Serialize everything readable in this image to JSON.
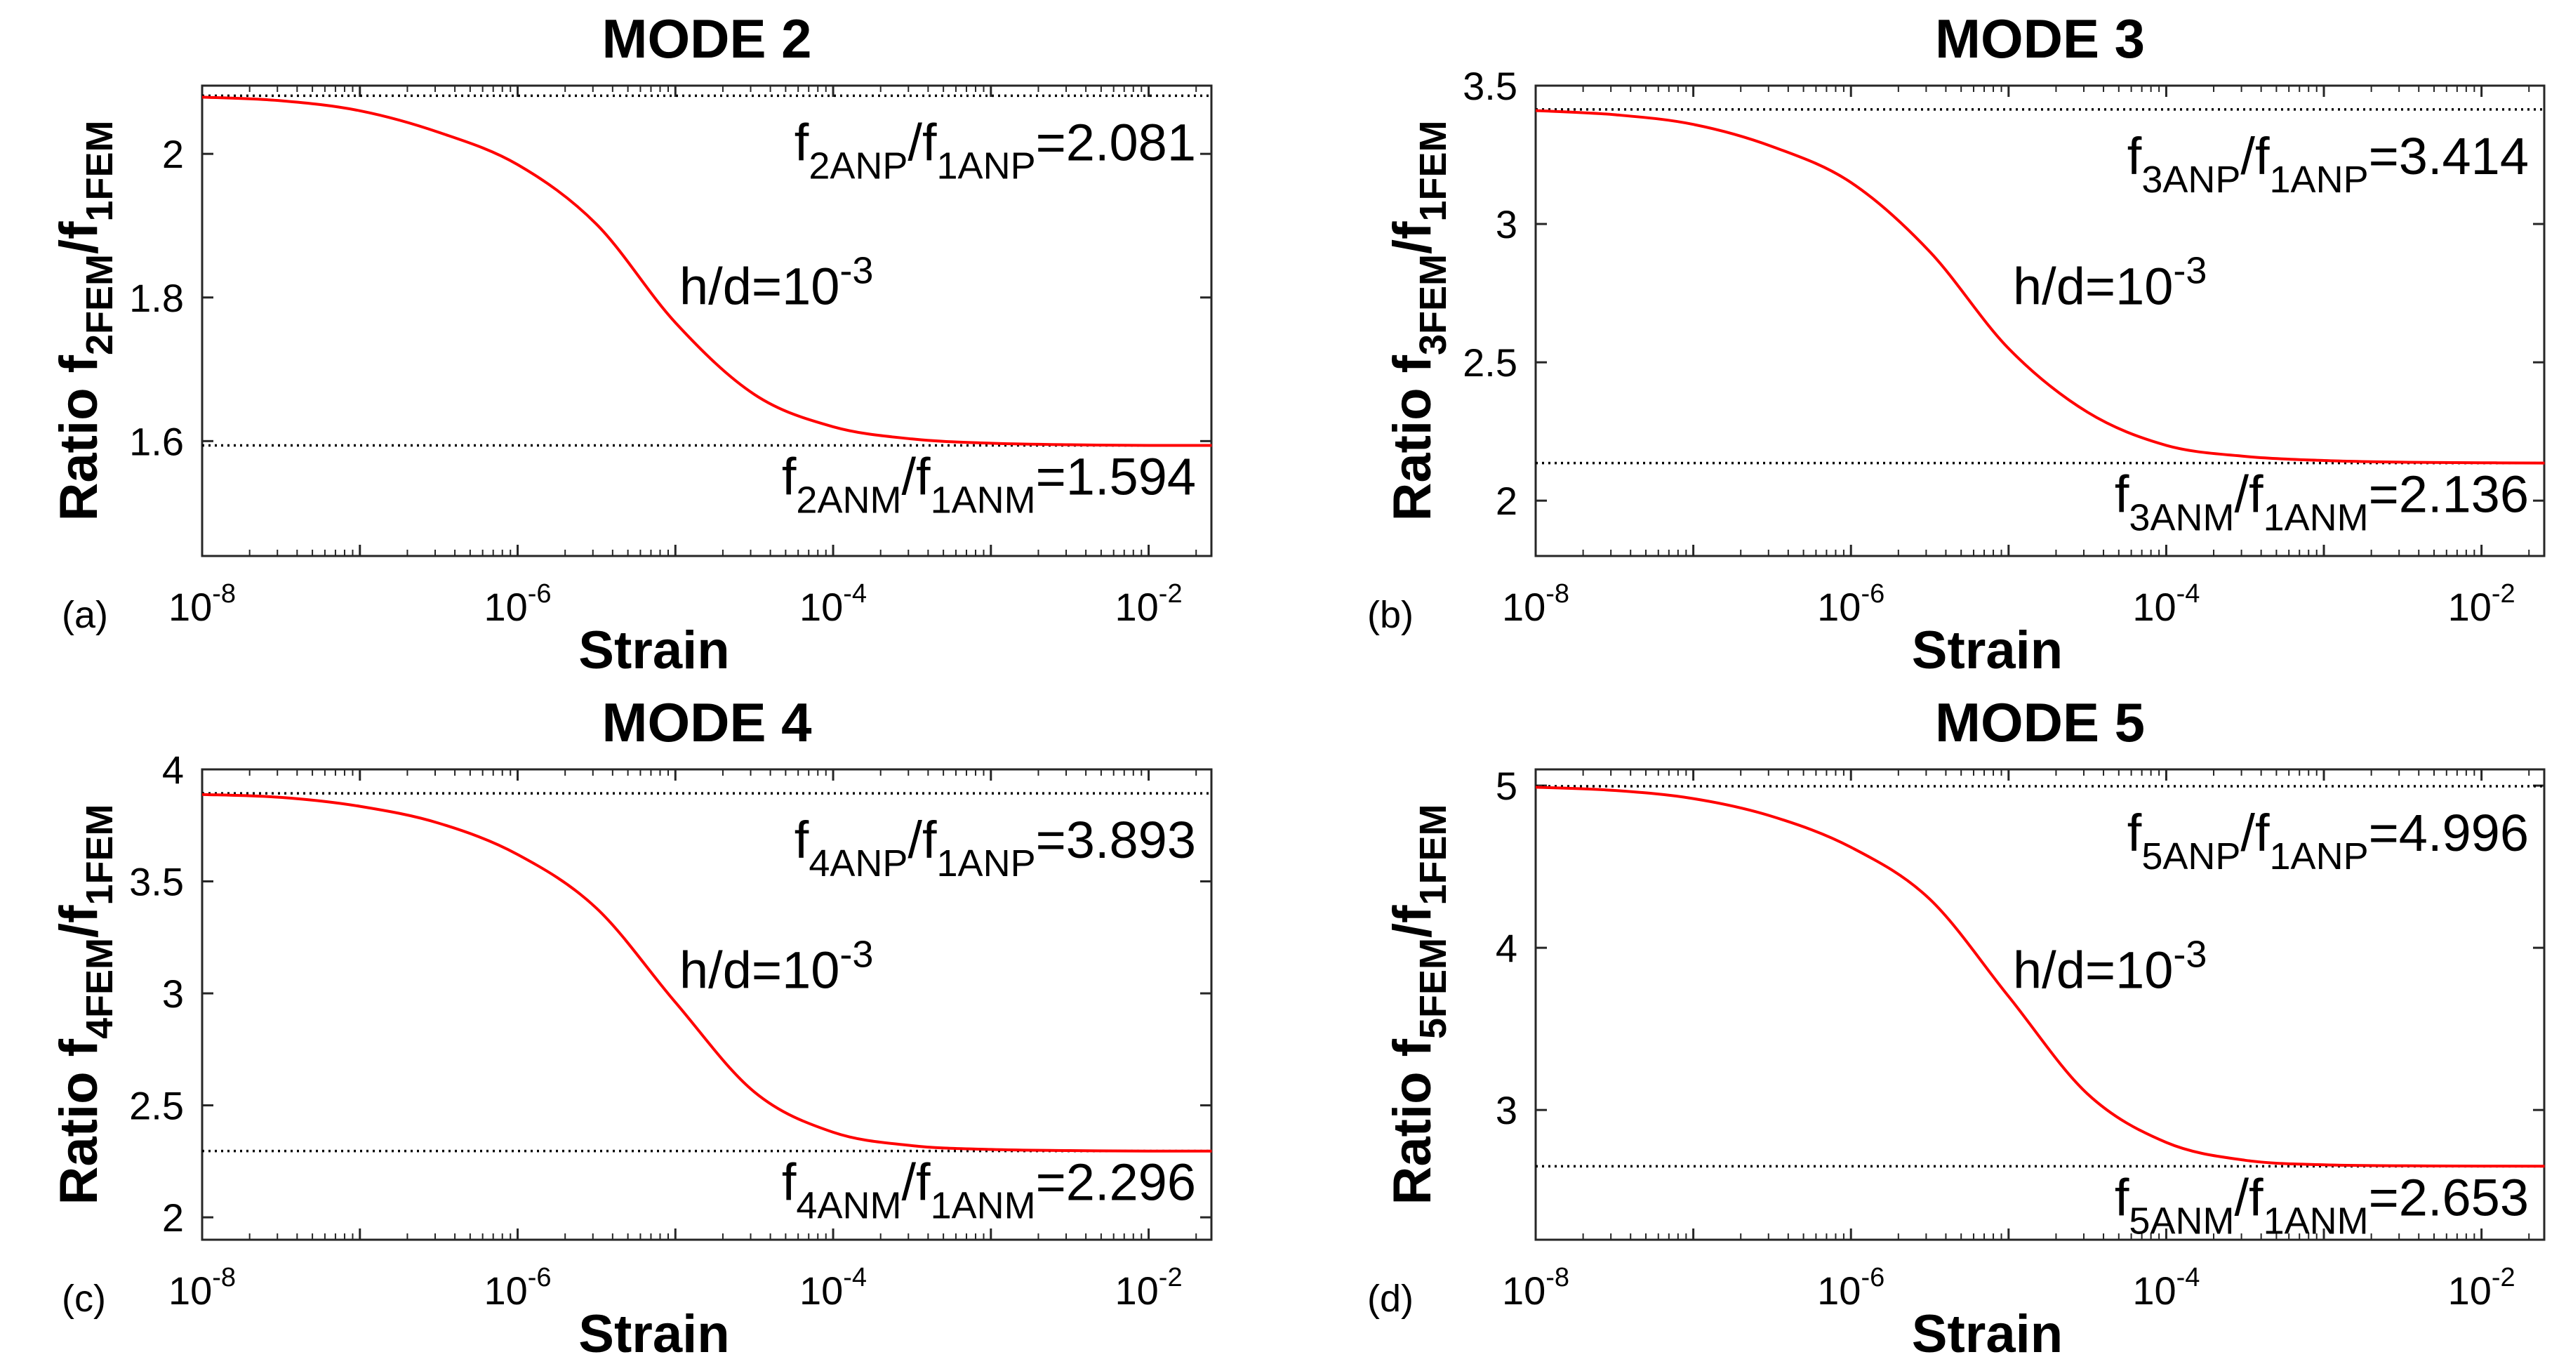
{
  "figure": {
    "xlabel": "Strain",
    "red_color": "#ff0000",
    "ref_color": "#000000"
  },
  "chart_data": [
    {
      "type": "line",
      "panel_label": "(a)",
      "title": "MODE 2",
      "ylabel_prefix": "Ratio f",
      "ylabel_num_sub": "2FEM",
      "ylabel_slash": "/f",
      "ylabel_den_sub": "1FEM",
      "xlabel": "Strain",
      "xscale": "log",
      "xlim": [
        1e-08,
        0.025
      ],
      "ylim": [
        1.44,
        2.095
      ],
      "yticks": [
        1.6,
        1.8,
        2
      ],
      "ytick_labels": [
        "1.6",
        "1.8",
        "2"
      ],
      "xticks_exp": [
        "-8",
        "-6",
        "-4",
        "-2"
      ],
      "xtick_base": "10",
      "upper": 2.081,
      "lower": 1.594,
      "annot_upper": {
        "f": "f",
        "num": "2ANP",
        "slash": "/f",
        "den": "1ANP",
        "val": "=2.081"
      },
      "annot_lower": {
        "f": "f",
        "num": "2ANM",
        "slash": "/f",
        "den": "1ANM",
        "val": "=1.594"
      },
      "annot_hd": {
        "text": "h/d=10",
        "exp": "-3"
      },
      "series": [
        {
          "name": "h/d=10^-3",
          "x_log10": [
            -8,
            -7.5,
            -7,
            -6.5,
            -6,
            -5.5,
            -5,
            -4.5,
            -4,
            -3.5,
            -3,
            -2.5,
            -2,
            -1.6
          ],
          "values": [
            2.079,
            2.074,
            2.06,
            2.03,
            1.985,
            1.902,
            1.765,
            1.665,
            1.62,
            1.603,
            1.597,
            1.595,
            1.594,
            1.594
          ]
        }
      ]
    },
    {
      "type": "line",
      "panel_label": "(b)",
      "title": "MODE 3",
      "ylabel_prefix": "Ratio f",
      "ylabel_num_sub": "3FEM",
      "ylabel_slash": "/f",
      "ylabel_den_sub": "1FEM",
      "xlabel": "Strain",
      "xscale": "log",
      "xlim": [
        1e-08,
        0.025
      ],
      "ylim": [
        1.8,
        3.5
      ],
      "yticks": [
        2,
        2.5,
        3,
        3.5
      ],
      "ytick_labels": [
        "2",
        "2.5",
        "3",
        "3.5"
      ],
      "xticks_exp": [
        "-8",
        "-6",
        "-4",
        "-2"
      ],
      "xtick_base": "10",
      "upper": 3.414,
      "lower": 2.136,
      "annot_upper": {
        "f": "f",
        "num": "3ANP",
        "slash": "/f",
        "den": "1ANP",
        "val": "=3.414"
      },
      "annot_lower": {
        "f": "f",
        "num": "3ANM",
        "slash": "/f",
        "den": "1ANM",
        "val": "=2.136"
      },
      "annot_hd": {
        "text": "h/d=10",
        "exp": "-3"
      },
      "series": [
        {
          "name": "h/d=10^-3",
          "x_log10": [
            -8,
            -7.5,
            -7,
            -6.5,
            -6,
            -5.5,
            -5,
            -4.5,
            -4,
            -3.5,
            -3,
            -2.5,
            -2,
            -1.6
          ],
          "values": [
            3.41,
            3.395,
            3.36,
            3.28,
            3.15,
            2.9,
            2.55,
            2.32,
            2.2,
            2.16,
            2.145,
            2.139,
            2.137,
            2.136
          ]
        }
      ]
    },
    {
      "type": "line",
      "panel_label": "(c)",
      "title": "MODE 4",
      "ylabel_prefix": "Ratio f",
      "ylabel_num_sub": "4FEM",
      "ylabel_slash": "/f",
      "ylabel_den_sub": "1FEM",
      "xlabel": "Strain",
      "xscale": "log",
      "xlim": [
        1e-08,
        0.025
      ],
      "ylim": [
        1.9,
        4.0
      ],
      "yticks": [
        2,
        2.5,
        3,
        3.5,
        4
      ],
      "ytick_labels": [
        "2",
        "2.5",
        "3",
        "3.5",
        "4"
      ],
      "xticks_exp": [
        "-8",
        "-6",
        "-4",
        "-2"
      ],
      "xtick_base": "10",
      "upper": 3.893,
      "lower": 2.296,
      "annot_upper": {
        "f": "f",
        "num": "4ANP",
        "slash": "/f",
        "den": "1ANP",
        "val": "=3.893"
      },
      "annot_lower": {
        "f": "f",
        "num": "4ANM",
        "slash": "/f",
        "den": "1ANM",
        "val": "=2.296"
      },
      "annot_hd": {
        "text": "h/d=10",
        "exp": "-3"
      },
      "series": [
        {
          "name": "h/d=10^-3",
          "x_log10": [
            -8,
            -7.5,
            -7,
            -6.5,
            -6,
            -5.5,
            -5,
            -4.5,
            -4,
            -3.5,
            -3,
            -2.5,
            -2,
            -1.6
          ],
          "values": [
            3.888,
            3.875,
            3.835,
            3.76,
            3.62,
            3.38,
            2.96,
            2.56,
            2.38,
            2.32,
            2.303,
            2.298,
            2.296,
            2.296
          ]
        }
      ]
    },
    {
      "type": "line",
      "panel_label": "(d)",
      "title": "MODE 5",
      "ylabel_prefix": "Ratio f",
      "ylabel_num_sub": "5FEM",
      "ylabel_slash": "/f",
      "ylabel_den_sub": "1FEM",
      "xlabel": "Strain",
      "xscale": "log",
      "xlim": [
        1e-08,
        0.025
      ],
      "ylim": [
        2.2,
        5.1
      ],
      "yticks": [
        3,
        4,
        5
      ],
      "ytick_labels": [
        "3",
        "4",
        "5"
      ],
      "xticks_exp": [
        "-8",
        "-6",
        "-4",
        "-2"
      ],
      "xtick_base": "10",
      "upper": 4.996,
      "lower": 2.653,
      "annot_upper": {
        "f": "f",
        "num": "5ANP",
        "slash": "/f",
        "den": "1ANP",
        "val": "=4.996"
      },
      "annot_lower": {
        "f": "f",
        "num": "5ANM",
        "slash": "/f",
        "den": "1ANM",
        "val": "=2.653"
      },
      "annot_hd": {
        "text": "h/d=10",
        "exp": "-3"
      },
      "series": [
        {
          "name": "h/d=10^-3",
          "x_log10": [
            -8,
            -7.5,
            -7,
            -6.5,
            -6,
            -5.5,
            -5,
            -4.5,
            -4,
            -3.5,
            -3,
            -2.5,
            -2,
            -1.6
          ],
          "values": [
            4.99,
            4.97,
            4.92,
            4.81,
            4.62,
            4.3,
            3.7,
            3.1,
            2.8,
            2.69,
            2.662,
            2.656,
            2.654,
            2.653
          ]
        }
      ]
    }
  ]
}
